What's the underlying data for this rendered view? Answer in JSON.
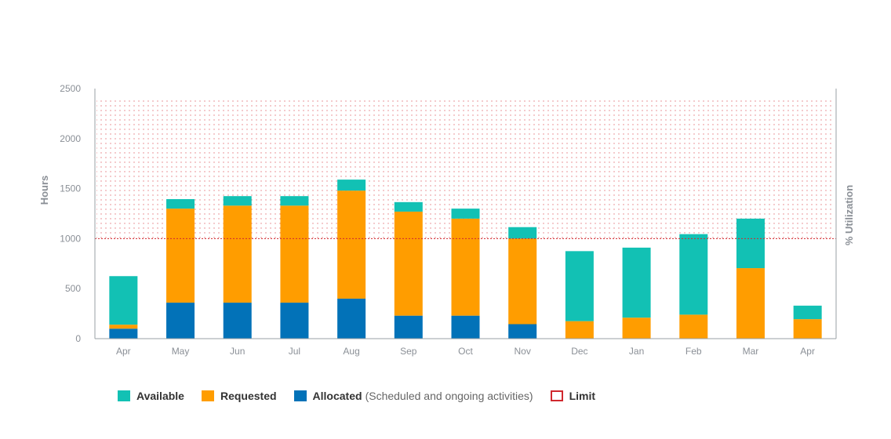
{
  "colors": {
    "available": "#12c1b4",
    "requested": "#ff9d00",
    "allocated": "#0272b8",
    "limit": "#d0282e",
    "axis": "#9aa0a6"
  },
  "chart_data": {
    "type": "bar",
    "stacked": true,
    "categories": [
      "Apr",
      "May",
      "Jun",
      "Jul",
      "Aug",
      "Sep",
      "Oct",
      "Nov",
      "Dec",
      "Jan",
      "Feb",
      "Mar",
      "Apr"
    ],
    "series": [
      {
        "name": "Allocated",
        "values": [
          100,
          360,
          360,
          360,
          400,
          230,
          230,
          145,
          0,
          0,
          0,
          0,
          0
        ]
      },
      {
        "name": "Requested",
        "values": [
          40,
          940,
          970,
          970,
          1080,
          1040,
          970,
          855,
          175,
          210,
          240,
          705,
          195
        ]
      },
      {
        "name": "Available",
        "values": [
          485,
          95,
          95,
          95,
          110,
          95,
          100,
          115,
          700,
          700,
          805,
          495,
          135
        ]
      }
    ],
    "limit": 1000,
    "ylim": [
      0,
      2500
    ],
    "yticks": [
      0,
      500,
      1000,
      1500,
      2000,
      2500
    ],
    "ylabel": "Hours",
    "y2label": "% Utilization",
    "legend": [
      {
        "label": "Available",
        "note": ""
      },
      {
        "label": "Requested",
        "note": ""
      },
      {
        "label": "Allocated",
        "note": "(Scheduled and ongoing activities)"
      },
      {
        "label": "Limit",
        "note": ""
      }
    ],
    "legend_position": "bottom-left"
  }
}
